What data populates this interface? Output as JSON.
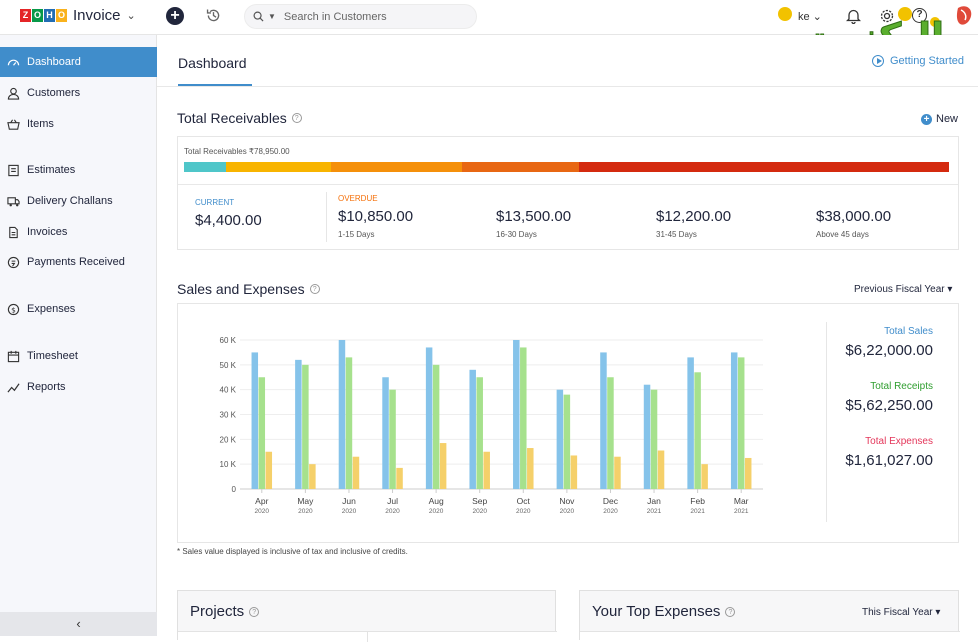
{
  "app": {
    "brand_letters": [
      "Z",
      "O",
      "H",
      "O"
    ],
    "name": "Invoice",
    "search_placeholder": "Search in Customers",
    "org_name": "ke",
    "watermark_text": "البكنوت"
  },
  "sidebar": {
    "items": [
      {
        "label": "Dashboard",
        "icon": "dashboard-icon",
        "active": true
      },
      {
        "label": "Customers",
        "icon": "user-icon"
      },
      {
        "label": "Items",
        "icon": "basket-icon"
      },
      {
        "label": "Estimates",
        "icon": "estimate-icon"
      },
      {
        "label": "Delivery Challans",
        "icon": "truck-icon"
      },
      {
        "label": "Invoices",
        "icon": "document-icon"
      },
      {
        "label": "Payments Received",
        "icon": "payment-icon"
      },
      {
        "label": "Expenses",
        "icon": "dollar-icon"
      },
      {
        "label": "Timesheet",
        "icon": "calendar-icon"
      },
      {
        "label": "Reports",
        "icon": "chart-line-icon"
      }
    ],
    "collapse_glyph": "‹"
  },
  "header": {
    "title": "Dashboard",
    "getting_started": "Getting Started"
  },
  "receivables": {
    "title": "Total Receivables",
    "new_label": "New",
    "total_label": "Total Receivables ₹78,950.00",
    "bar_colors": [
      "#4fc6c9",
      "#f8b400",
      "#f5900a",
      "#e86713",
      "#d42a0f"
    ],
    "bar_shares": [
      0.055,
      0.137,
      0.171,
      0.154,
      0.483
    ],
    "current": {
      "label": "CURRENT",
      "amount": "$4,400.00",
      "color": "#408dcb"
    },
    "overdue_label": "OVERDUE",
    "overdue_color": "#f5700a",
    "buckets": [
      {
        "amount": "$10,850.00",
        "range": "1-15 Days"
      },
      {
        "amount": "$13,500.00",
        "range": "16-30 Days"
      },
      {
        "amount": "$12,200.00",
        "range": "31-45 Days"
      },
      {
        "amount": "$38,000.00",
        "range": "Above 45 days"
      }
    ]
  },
  "sales": {
    "title": "Sales and Expenses",
    "period": "Previous Fiscal Year ▾",
    "totals": [
      {
        "label": "Total Sales",
        "value": "$6,22,000.00",
        "color": "#408dcb"
      },
      {
        "label": "Total Receipts",
        "value": "$5,62,250.00",
        "color": "#2f9e2f"
      },
      {
        "label": "Total Expenses",
        "value": "$1,61,027.00",
        "color": "#e4365a"
      }
    ],
    "footnote": "* Sales value displayed is inclusive of tax and inclusive of credits."
  },
  "chart_data": {
    "type": "bar",
    "categories": [
      "Apr",
      "May",
      "Jun",
      "Jul",
      "Aug",
      "Sep",
      "Oct",
      "Nov",
      "Dec",
      "Jan",
      "Feb",
      "Mar"
    ],
    "category_years": [
      "2020",
      "2020",
      "2020",
      "2020",
      "2020",
      "2020",
      "2020",
      "2020",
      "2020",
      "2021",
      "2021",
      "2021"
    ],
    "series": [
      {
        "name": "Sales",
        "color": "#85c3ea",
        "values": [
          55000,
          52000,
          60000,
          45000,
          57000,
          48000,
          60000,
          40000,
          55000,
          42000,
          53000,
          55000
        ]
      },
      {
        "name": "Receipts",
        "color": "#a6e18d",
        "values": [
          45000,
          50000,
          53000,
          40000,
          50000,
          45000,
          57000,
          38000,
          45000,
          40000,
          47000,
          53000
        ]
      },
      {
        "name": "Expenses",
        "color": "#f5d06a",
        "values": [
          15000,
          10000,
          13000,
          8500,
          18500,
          15000,
          16500,
          13500,
          13000,
          15500,
          10000,
          12500
        ]
      }
    ],
    "y_ticks": [
      "0",
      "10 K",
      "20 K",
      "30 K",
      "40 K",
      "50 K",
      "60 K"
    ],
    "ylim": [
      0,
      60000
    ],
    "grid": true
  },
  "projects": {
    "title": "Projects"
  },
  "top_expenses": {
    "title": "Your Top Expenses",
    "period": "This Fiscal Year ▾"
  }
}
